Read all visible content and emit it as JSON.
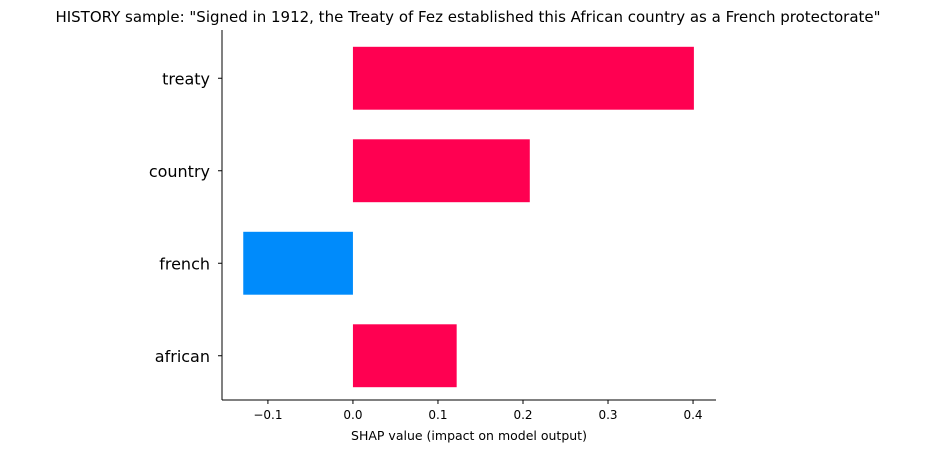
{
  "chart_data": {
    "type": "bar",
    "orientation": "horizontal",
    "title": "HISTORY sample: \"Signed in 1912, the Treaty of Fez established this African country as a French protectorate\"",
    "xlabel": "SHAP value (impact on model output)",
    "ylabel": "",
    "categories": [
      "treaty",
      "country",
      "french",
      "african"
    ],
    "values": [
      0.401,
      0.208,
      -0.129,
      0.122
    ],
    "xlim": [
      -0.154,
      0.427
    ],
    "xticks": [
      -0.1,
      0.0,
      0.1,
      0.2,
      0.3,
      0.4
    ],
    "xtick_labels": [
      "−0.1",
      "0.0",
      "0.1",
      "0.2",
      "0.3",
      "0.4"
    ],
    "grid": false,
    "colors": {
      "positive": "#ff0051",
      "negative": "#008bfb",
      "axis": "#000000"
    }
  }
}
